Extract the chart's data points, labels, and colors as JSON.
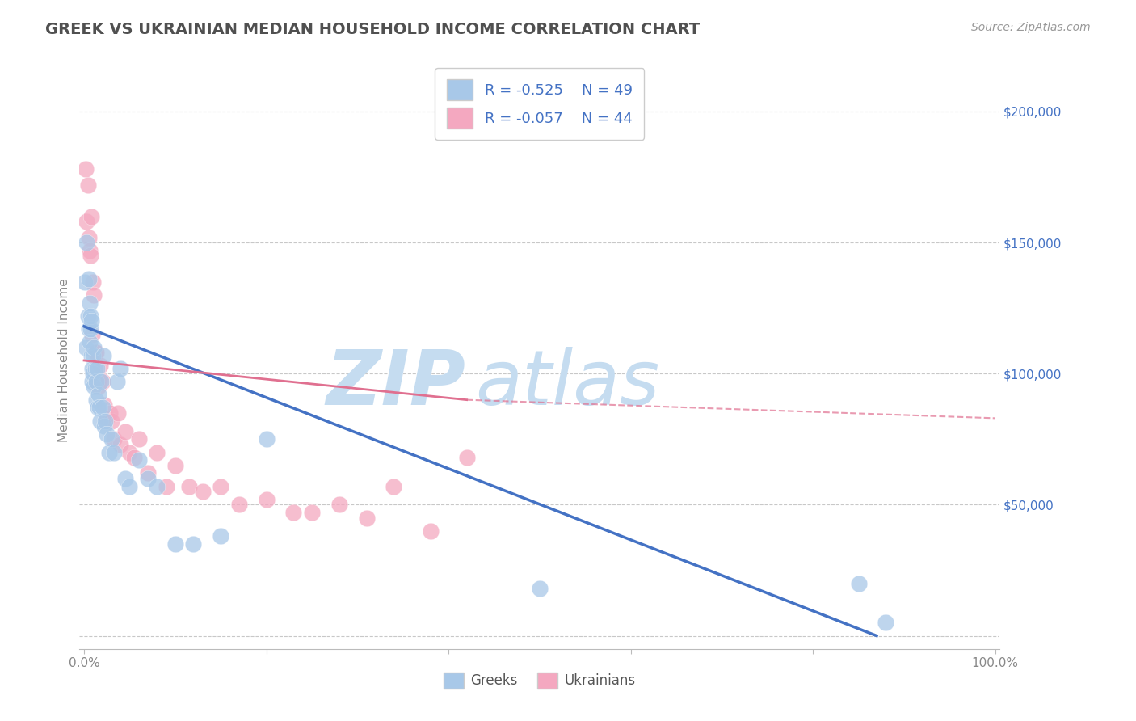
{
  "title": "GREEK VS UKRAINIAN MEDIAN HOUSEHOLD INCOME CORRELATION CHART",
  "source_text": "Source: ZipAtlas.com",
  "ylabel": "Median Household Income",
  "xlim": [
    -0.005,
    1.005
  ],
  "ylim": [
    -5000,
    215000
  ],
  "xticks": [
    0,
    0.2,
    0.4,
    0.6,
    0.8,
    1.0
  ],
  "xtick_labels": [
    "0.0%",
    "",
    "",
    "",
    "",
    "100.0%"
  ],
  "yticks": [
    0,
    50000,
    100000,
    150000,
    200000
  ],
  "ytick_labels": [
    "",
    "$50,000",
    "$100,000",
    "$150,000",
    "$200,000"
  ],
  "greek_color": "#A8C8E8",
  "greek_line_color": "#4472C4",
  "ukrainian_color": "#F4A8C0",
  "ukrainian_line_color": "#E07090",
  "greek_R": -0.525,
  "greek_N": 49,
  "ukrainian_R": -0.057,
  "ukrainian_N": 44,
  "background_color": "#FFFFFF",
  "grid_color": "#C8C8C8",
  "title_color": "#505050",
  "watermark_zip": "ZIP",
  "watermark_atlas": "atlas",
  "watermark_color": "#D8E8F0",
  "greek_x": [
    0.001,
    0.002,
    0.003,
    0.004,
    0.005,
    0.005,
    0.006,
    0.006,
    0.007,
    0.007,
    0.008,
    0.008,
    0.009,
    0.009,
    0.01,
    0.01,
    0.011,
    0.011,
    0.012,
    0.013,
    0.013,
    0.014,
    0.015,
    0.016,
    0.017,
    0.018,
    0.019,
    0.02,
    0.021,
    0.022,
    0.023,
    0.025,
    0.027,
    0.03,
    0.033,
    0.036,
    0.04,
    0.045,
    0.05,
    0.06,
    0.07,
    0.08,
    0.1,
    0.12,
    0.15,
    0.2,
    0.5,
    0.85,
    0.88
  ],
  "greek_y": [
    135000,
    110000,
    150000,
    122000,
    117000,
    136000,
    127000,
    112000,
    117000,
    122000,
    107000,
    120000,
    102000,
    97000,
    107000,
    100000,
    110000,
    95000,
    102000,
    97000,
    90000,
    102000,
    87000,
    92000,
    87000,
    82000,
    97000,
    87000,
    107000,
    80000,
    82000,
    77000,
    70000,
    75000,
    70000,
    97000,
    102000,
    60000,
    57000,
    67000,
    60000,
    57000,
    35000,
    35000,
    38000,
    75000,
    18000,
    20000,
    5000
  ],
  "ukrainian_x": [
    0.002,
    0.003,
    0.004,
    0.005,
    0.006,
    0.007,
    0.008,
    0.009,
    0.01,
    0.011,
    0.012,
    0.013,
    0.015,
    0.016,
    0.017,
    0.018,
    0.02,
    0.022,
    0.025,
    0.028,
    0.03,
    0.033,
    0.037,
    0.04,
    0.045,
    0.05,
    0.055,
    0.06,
    0.07,
    0.08,
    0.09,
    0.1,
    0.115,
    0.13,
    0.15,
    0.17,
    0.2,
    0.23,
    0.25,
    0.28,
    0.31,
    0.34,
    0.38,
    0.42
  ],
  "ukrainian_y": [
    178000,
    158000,
    172000,
    152000,
    147000,
    145000,
    160000,
    115000,
    135000,
    130000,
    108000,
    108000,
    98000,
    95000,
    98000,
    103000,
    97000,
    88000,
    83000,
    85000,
    82000,
    75000,
    85000,
    73000,
    78000,
    70000,
    68000,
    75000,
    62000,
    70000,
    57000,
    65000,
    57000,
    55000,
    57000,
    50000,
    52000,
    47000,
    47000,
    50000,
    45000,
    57000,
    40000,
    68000
  ]
}
